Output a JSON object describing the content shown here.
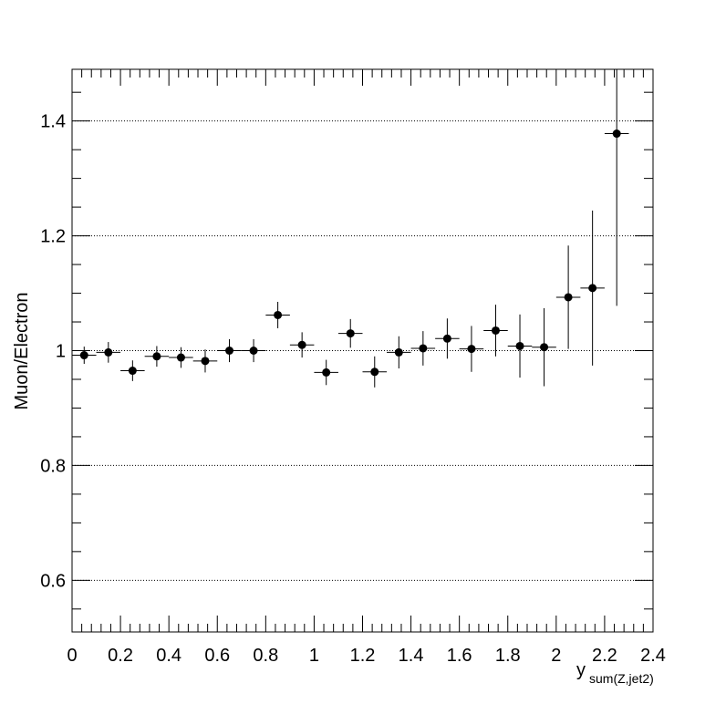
{
  "chart_data": {
    "type": "scatter",
    "title": "",
    "xlabel": "y",
    "xlabel_subscript": "sum(Z,jet2)",
    "ylabel": "Muon/Electron",
    "xlim": [
      0,
      2.4
    ],
    "ylim": [
      0.51,
      1.49
    ],
    "x_ticks": [
      0,
      0.2,
      0.4,
      0.6,
      0.8,
      1,
      1.2,
      1.4,
      1.6,
      1.8,
      2,
      2.2,
      2.4
    ],
    "x_tick_labels": [
      "0",
      "0.2",
      "0.4",
      "0.6",
      "0.8",
      "1",
      "1.2",
      "1.4",
      "1.6",
      "1.8",
      "2",
      "2.2",
      "2.4"
    ],
    "y_ticks": [
      0.6,
      0.8,
      1.0,
      1.2,
      1.4
    ],
    "y_tick_labels": [
      "0.6",
      "0.8",
      "1",
      "1.2",
      "1.4"
    ],
    "grid": "horizontal dotted",
    "marker_color": "#000000",
    "bin_half_width": 0.05,
    "series": [
      {
        "x": [
          0.05,
          0.15,
          0.25,
          0.35,
          0.45,
          0.55,
          0.65,
          0.75,
          0.85,
          0.95,
          1.05,
          1.15,
          1.25,
          1.35,
          1.45,
          1.55,
          1.65,
          1.75,
          1.85,
          1.95,
          2.05,
          2.15,
          2.25
        ],
        "y": [
          0.992,
          0.997,
          0.965,
          0.99,
          0.988,
          0.982,
          1.0,
          1.0,
          1.062,
          1.01,
          0.962,
          1.03,
          0.963,
          0.997,
          1.004,
          1.021,
          1.003,
          1.035,
          1.008,
          1.006,
          1.093,
          1.109,
          1.378
        ],
        "yerr": [
          0.015,
          0.018,
          0.018,
          0.018,
          0.018,
          0.02,
          0.02,
          0.02,
          0.023,
          0.022,
          0.022,
          0.025,
          0.027,
          0.028,
          0.03,
          0.035,
          0.04,
          0.045,
          0.055,
          0.068,
          0.09,
          0.135,
          0.3
        ]
      }
    ]
  }
}
